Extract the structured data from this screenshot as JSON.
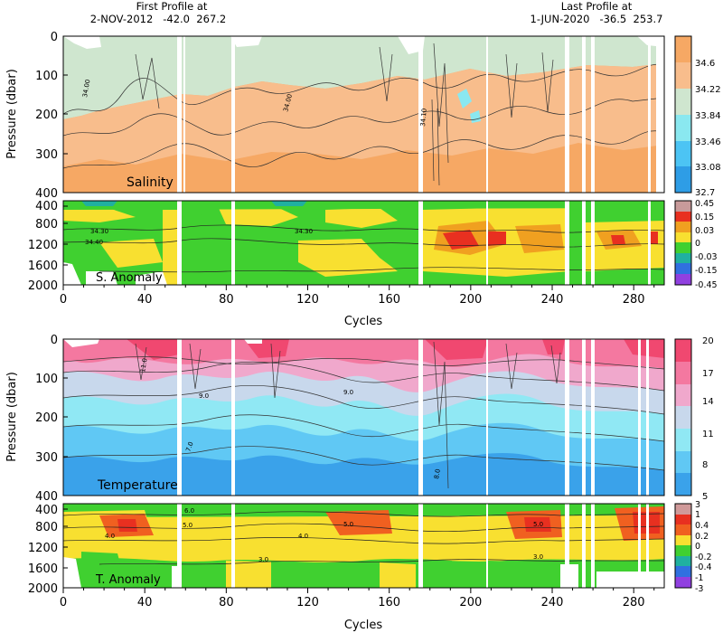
{
  "header": {
    "first_label": "First Profile at",
    "first_value": "2-NOV-2012   -42.0  267.2",
    "last_label": "Last Profile at",
    "last_value": "1-JUN-2020   -36.5  253.7"
  },
  "chart_data": [
    {
      "type": "heatmap",
      "title": "Salinity",
      "ylabel": "Pressure (dbar)",
      "ylim": [
        0,
        400
      ],
      "y_ticks": [
        "0",
        "100",
        "200",
        "300",
        "400"
      ],
      "colorbar_labels": [
        "34.6",
        "34.22",
        "33.84",
        "33.46",
        "33.08",
        "32.7"
      ],
      "contour_labels": [
        "34.00",
        "34.00",
        "34.10"
      ]
    },
    {
      "type": "heatmap",
      "title": "S. Anomaly",
      "ylim": [
        400,
        2000
      ],
      "y_ticks": [
        "400",
        "800",
        "1200",
        "1600",
        "2000"
      ],
      "colorbar_labels": [
        "0.45",
        "0.15",
        "0.03",
        "0",
        "-0.03",
        "-0.15",
        "-0.45"
      ],
      "contour_labels": [
        "34.30",
        "34.40",
        "34.30"
      ]
    },
    {
      "type": "heatmap",
      "title": "Temperature",
      "ylabel": "Pressure (dbar)",
      "ylim": [
        0,
        400
      ],
      "y_ticks": [
        "0",
        "100",
        "200",
        "300",
        "400"
      ],
      "colorbar_labels": [
        "20",
        "17",
        "14",
        "11",
        "8",
        "5"
      ],
      "contour_labels": [
        "11.0",
        "9.0",
        "9.0",
        "7.0",
        "8.0"
      ]
    },
    {
      "type": "heatmap",
      "title": "T. Anomaly",
      "ylim": [
        400,
        2000
      ],
      "y_ticks": [
        "400",
        "800",
        "1200",
        "1600",
        "2000"
      ],
      "colorbar_labels": [
        "3",
        "1",
        "0.4",
        "0.2",
        "0",
        "-0.2",
        "-0.4",
        "-1",
        "-3"
      ],
      "contour_labels": [
        "6.0",
        "5.0",
        "4.0",
        "5.0",
        "4.0",
        "3.0",
        "5.0",
        "3.0"
      ]
    }
  ],
  "x_axis": {
    "label": "Cycles",
    "xlim": [
      0,
      295
    ],
    "ticks": [
      "0",
      "40",
      "80",
      "120",
      "160",
      "200",
      "240",
      "280"
    ]
  },
  "colors": {
    "salinity": [
      "#f6a864",
      "#f8bd8c",
      "#cfe6cf",
      "#8ae8f0",
      "#4cc4f4",
      "#2e9de6"
    ],
    "s_anomaly": [
      "#c89a9a",
      "#e83020",
      "#f0a020",
      "#f8e030",
      "#40d030",
      "#20b0a0",
      "#3070e0",
      "#9040e0"
    ],
    "temperature": [
      "#f04870",
      "#f478a0",
      "#f0a8cc",
      "#c8d8ec",
      "#90e8f4",
      "#60c8f4",
      "#3aa2ea"
    ],
    "t_anomaly": [
      "#d09a9a",
      "#e83020",
      "#f06020",
      "#f8e030",
      "#40d030",
      "#20b0a0",
      "#3070e0",
      "#9040e0"
    ]
  }
}
